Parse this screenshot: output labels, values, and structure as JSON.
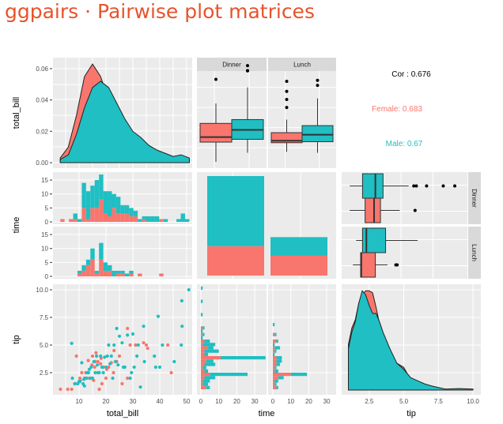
{
  "title": "ggpairs · Pairwise plot matrices",
  "colors": {
    "female": "#F8766D",
    "male": "#1FBFC3",
    "panel": "#EBEBEB",
    "strip": "#D9D9D9",
    "title": "#E8532B"
  },
  "chart_data": {
    "type": "pairs",
    "variables": [
      "total_bill",
      "time",
      "tip"
    ],
    "groups": [
      "Female",
      "Male"
    ],
    "axis_labels": {
      "x": [
        "total_bill",
        "time",
        "tip"
      ],
      "y": [
        "total_bill",
        "time",
        "tip"
      ]
    },
    "facets": [
      "Dinner",
      "Lunch"
    ],
    "ticks": {
      "density_y": [
        "0.00",
        "0.02",
        "0.04",
        "0.06"
      ],
      "total_bill": [
        "10",
        "20",
        "30",
        "40",
        "50"
      ],
      "count_row": [
        "0",
        "5",
        "10",
        "15"
      ],
      "count_col": [
        "0",
        "10",
        "20",
        "30"
      ],
      "tip": [
        "2.5",
        "5.0",
        "7.5",
        "10.0"
      ]
    },
    "correlation": {
      "overall": "Cor : 0.676",
      "female": "Female: 0.683",
      "male": "Male: 0.67"
    },
    "density_total_bill": {
      "x": [
        3,
        6,
        9,
        12,
        15,
        18,
        21,
        24,
        27,
        30,
        33,
        36,
        39,
        42,
        45,
        48,
        51
      ],
      "Female": [
        0.003,
        0.01,
        0.03,
        0.055,
        0.063,
        0.055,
        0.04,
        0.03,
        0.02,
        0.015,
        0.01,
        0.007,
        0.005,
        0.005,
        0.004,
        0.002,
        0.002
      ],
      "Male": [
        0.002,
        0.005,
        0.018,
        0.035,
        0.048,
        0.052,
        0.048,
        0.038,
        0.028,
        0.02,
        0.016,
        0.011,
        0.008,
        0.006,
        0.004,
        0.005,
        0.003
      ]
    },
    "box_total_bill": {
      "Dinner": {
        "Female": {
          "min": 3,
          "q1": 12.8,
          "med": 15.3,
          "q3": 22.1,
          "max": 32,
          "out": [
            44
          ]
        },
        "Male": {
          "min": 7.5,
          "q1": 14.2,
          "med": 18.9,
          "q3": 24,
          "max": 40,
          "out": [
            48.2,
            48.3,
            50.8
          ]
        }
      },
      "Lunch": {
        "Female": {
          "min": 8,
          "q1": 12.5,
          "med": 13.5,
          "q3": 17.5,
          "max": 24,
          "out": [
            30,
            34,
            38,
            43
          ]
        },
        "Male": {
          "min": 7.5,
          "q1": 13,
          "med": 16.5,
          "q3": 21,
          "max": 34.5,
          "out": [
            41,
            43.5
          ]
        }
      }
    },
    "time_counts": {
      "Dinner": {
        "Female": 52,
        "Male": 124
      },
      "Lunch": {
        "Female": 35,
        "Male": 33
      }
    },
    "hist_total_bill": {
      "bin_start": 3,
      "bin_width": 1.6,
      "Dinner": {
        "Female": [
          1,
          0,
          1,
          1,
          0,
          5,
          1,
          5,
          5,
          8,
          3,
          2,
          5,
          3,
          3,
          3,
          2,
          2,
          0,
          1,
          0,
          0,
          0,
          1,
          0,
          0,
          0,
          0,
          0,
          0
        ],
        "Male": [
          0,
          0,
          0,
          2,
          1,
          9,
          10,
          8,
          10,
          9,
          8,
          9,
          5,
          6,
          3,
          3,
          3,
          2,
          1,
          1,
          2,
          2,
          2,
          0,
          1,
          0,
          0,
          1,
          3,
          1
        ]
      },
      "Lunch": {
        "Female": [
          0,
          0,
          0,
          0,
          1,
          2,
          4,
          6,
          1,
          6,
          2,
          2,
          0,
          1,
          1,
          0,
          1,
          0,
          1,
          0,
          0,
          0,
          0,
          1,
          0,
          0,
          0,
          0,
          0,
          0
        ],
        "Male": [
          0,
          0,
          0,
          0,
          1,
          2,
          2,
          4,
          1,
          6,
          3,
          2,
          2,
          1,
          1,
          1,
          1,
          0,
          0,
          0,
          0,
          0,
          0,
          0,
          0,
          0,
          0,
          0,
          0,
          0
        ]
      }
    },
    "box_tip": {
      "Dinner": {
        "Male": {
          "min": 1.0,
          "q1": 2.0,
          "med": 3.0,
          "q3": 3.6,
          "max": 5.6,
          "out": [
            6.0,
            6.2,
            7.0,
            8.3,
            9.2
          ]
        },
        "Female": {
          "min": 1.0,
          "q1": 2.2,
          "med": 2.9,
          "q3": 3.4,
          "max": 4.9,
          "out": [
            6.1
          ]
        }
      },
      "Lunch": {
        "Male": {
          "min": 1.5,
          "q1": 2.0,
          "med": 2.3,
          "q3": 3.8,
          "max": 6.3,
          "out": []
        },
        "Female": {
          "min": 1.25,
          "q1": 1.85,
          "med": 1.9,
          "q3": 3.0,
          "max": 3.95,
          "out": [
            4.6,
            4.7
          ]
        }
      }
    },
    "scatter": {
      "Female": [
        [
          3.07,
          1
        ],
        [
          5.75,
          1
        ],
        [
          7.25,
          1
        ],
        [
          8.35,
          1.5
        ],
        [
          9,
          4
        ],
        [
          10.3,
          2
        ],
        [
          11,
          2.5
        ],
        [
          12,
          2
        ],
        [
          13,
          2
        ],
        [
          13.4,
          3.6
        ],
        [
          14.8,
          3.2
        ],
        [
          15,
          4
        ],
        [
          15.4,
          1.8
        ],
        [
          16,
          3.5
        ],
        [
          16.3,
          4.3
        ],
        [
          17,
          3.5
        ],
        [
          17.5,
          1
        ],
        [
          18,
          3.3
        ],
        [
          18.5,
          1.5
        ],
        [
          19,
          3
        ],
        [
          20,
          2
        ],
        [
          21,
          3
        ],
        [
          22,
          3.4
        ],
        [
          23,
          4.5
        ],
        [
          24,
          3.5
        ],
        [
          25,
          4
        ],
        [
          26,
          1.5
        ],
        [
          28,
          2
        ],
        [
          28,
          6.5
        ],
        [
          29,
          5
        ],
        [
          31,
          5
        ],
        [
          34,
          5.2
        ],
        [
          35,
          5
        ],
        [
          35.5,
          4.7
        ],
        [
          43,
          5
        ],
        [
          44.3,
          2.5
        ],
        [
          10.5,
          1.8
        ],
        [
          12.5,
          2.5
        ],
        [
          14.5,
          2
        ],
        [
          18.2,
          3.8
        ],
        [
          20.3,
          2.8
        ],
        [
          22.8,
          2.5
        ],
        [
          15.8,
          3
        ]
      ],
      "Male": [
        [
          7.25,
          5.15
        ],
        [
          7.5,
          2
        ],
        [
          8.5,
          1.5
        ],
        [
          9.5,
          1.5
        ],
        [
          10,
          1.7
        ],
        [
          10.3,
          1.7
        ],
        [
          11,
          3.4
        ],
        [
          11.5,
          1.5
        ],
        [
          12,
          1.3
        ],
        [
          12.5,
          2
        ],
        [
          13,
          2.5
        ],
        [
          13.5,
          2.5
        ],
        [
          14,
          2
        ],
        [
          14.5,
          3
        ],
        [
          15,
          2
        ],
        [
          15.5,
          3.5
        ],
        [
          16,
          2.5
        ],
        [
          16.5,
          4
        ],
        [
          17,
          2.5
        ],
        [
          17.5,
          2.5
        ],
        [
          18,
          4
        ],
        [
          18.5,
          3
        ],
        [
          19.5,
          3.9
        ],
        [
          20,
          3
        ],
        [
          20.5,
          4
        ],
        [
          21,
          5
        ],
        [
          22,
          4
        ],
        [
          22.5,
          2
        ],
        [
          23,
          5
        ],
        [
          23.5,
          3.5
        ],
        [
          24,
          6.5
        ],
        [
          25,
          5.8
        ],
        [
          26,
          5.2
        ],
        [
          27,
          3
        ],
        [
          28,
          5.9
        ],
        [
          29,
          2
        ],
        [
          30,
          6
        ],
        [
          30.5,
          3
        ],
        [
          32,
          5
        ],
        [
          32.8,
          1.2
        ],
        [
          34,
          6.7
        ],
        [
          34.3,
          3.5
        ],
        [
          38,
          4
        ],
        [
          38.5,
          3
        ],
        [
          39.4,
          7.6
        ],
        [
          40,
          3
        ],
        [
          41,
          5
        ],
        [
          45.4,
          3.5
        ],
        [
          48.3,
          6.7
        ],
        [
          48.2,
          9
        ],
        [
          48,
          5
        ],
        [
          50.8,
          10
        ],
        [
          24.5,
          3.2
        ],
        [
          19,
          2.5
        ],
        [
          16.8,
          3.2
        ],
        [
          13.8,
          2.8
        ],
        [
          11.8,
          1.9
        ],
        [
          21.5,
          3.3
        ],
        [
          26.5,
          3
        ],
        [
          29.5,
          2.5
        ],
        [
          31.5,
          4
        ]
      ]
    },
    "hist_tip": {
      "bin_start": 1,
      "bin_width": 0.3,
      "Dinner": {
        "Female": [
          3,
          1,
          1,
          2,
          5,
          2,
          1,
          2,
          3,
          11,
          2,
          2,
          4,
          1,
          2,
          0,
          1,
          0,
          1,
          0,
          0,
          0,
          0,
          0,
          0,
          0,
          0,
          0,
          0,
          0,
          0
        ],
        "Male": [
          2,
          3,
          4,
          6,
          21,
          2,
          2,
          6,
          4,
          25,
          2,
          8,
          3,
          7,
          3,
          1,
          1,
          1,
          1,
          0,
          0,
          0,
          1,
          0,
          0,
          0,
          1,
          0,
          0,
          0,
          1
        ]
      },
      "Lunch": {
        "Female": [
          2,
          1,
          1,
          3,
          10,
          1,
          1,
          2,
          2,
          2,
          0,
          1,
          1,
          0,
          2,
          0,
          1,
          0,
          0,
          0,
          0,
          0,
          0,
          0,
          0,
          0,
          0,
          0,
          0,
          0,
          0
        ],
        "Male": [
          1,
          1,
          2,
          3,
          9,
          2,
          1,
          2,
          3,
          3,
          1,
          1,
          3,
          1,
          1,
          0,
          1,
          0,
          0,
          1,
          0,
          0,
          0,
          0,
          0,
          0,
          0,
          0,
          0,
          0,
          0
        ]
      }
    },
    "density_tip": {
      "x": [
        1,
        1.25,
        1.5,
        1.75,
        2,
        2.25,
        2.5,
        2.75,
        3,
        3.25,
        3.5,
        4,
        4.5,
        5,
        5.5,
        6,
        6.5,
        7,
        8,
        9,
        10
      ],
      "Female": [
        0.22,
        0.3,
        0.34,
        0.42,
        0.46,
        0.48,
        0.48,
        0.47,
        0.4,
        0.32,
        0.26,
        0.18,
        0.13,
        0.11,
        0.05,
        0.03,
        0.02,
        0.01,
        0.003,
        0.003,
        0.003
      ],
      "Male": [
        0.2,
        0.28,
        0.33,
        0.42,
        0.48,
        0.46,
        0.41,
        0.37,
        0.37,
        0.33,
        0.28,
        0.2,
        0.13,
        0.1,
        0.06,
        0.045,
        0.03,
        0.02,
        0.005,
        0.007,
        0.005
      ]
    }
  }
}
